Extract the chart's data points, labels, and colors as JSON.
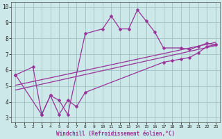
{
  "xlabel": "Windchill (Refroidissement éolien,°C)",
  "bg_color": "#cce8e8",
  "line_color": "#993399",
  "grid_color": "#99bbbb",
  "xlim": [
    -0.5,
    23.5
  ],
  "ylim": [
    2.7,
    10.3
  ],
  "xticks": [
    0,
    1,
    2,
    3,
    4,
    5,
    6,
    7,
    8,
    9,
    10,
    11,
    12,
    13,
    14,
    15,
    16,
    17,
    18,
    19,
    20,
    21,
    22,
    23
  ],
  "yticks": [
    3,
    4,
    5,
    6,
    7,
    8,
    9,
    10
  ],
  "line1_x": [
    0,
    2,
    3,
    4,
    5,
    6,
    8,
    10,
    11,
    12,
    13,
    14,
    15,
    16,
    17,
    19,
    20,
    21,
    22,
    23
  ],
  "line1_y": [
    5.7,
    6.2,
    3.2,
    4.4,
    4.1,
    3.2,
    8.3,
    8.6,
    9.4,
    8.6,
    8.6,
    9.8,
    9.1,
    8.4,
    7.4,
    7.4,
    7.3,
    7.5,
    7.7,
    7.6
  ],
  "line2_x": [
    0,
    3,
    4,
    5,
    6,
    7,
    8,
    17,
    18,
    19,
    20,
    21,
    22,
    23
  ],
  "line2_y": [
    5.7,
    3.2,
    4.4,
    3.2,
    4.1,
    3.7,
    4.6,
    6.5,
    6.6,
    6.7,
    6.8,
    7.1,
    7.5,
    7.6
  ],
  "line3_x": [
    0,
    23
  ],
  "line3_y": [
    4.75,
    7.55
  ],
  "line4_x": [
    0,
    23
  ],
  "line4_y": [
    5.05,
    7.75
  ]
}
